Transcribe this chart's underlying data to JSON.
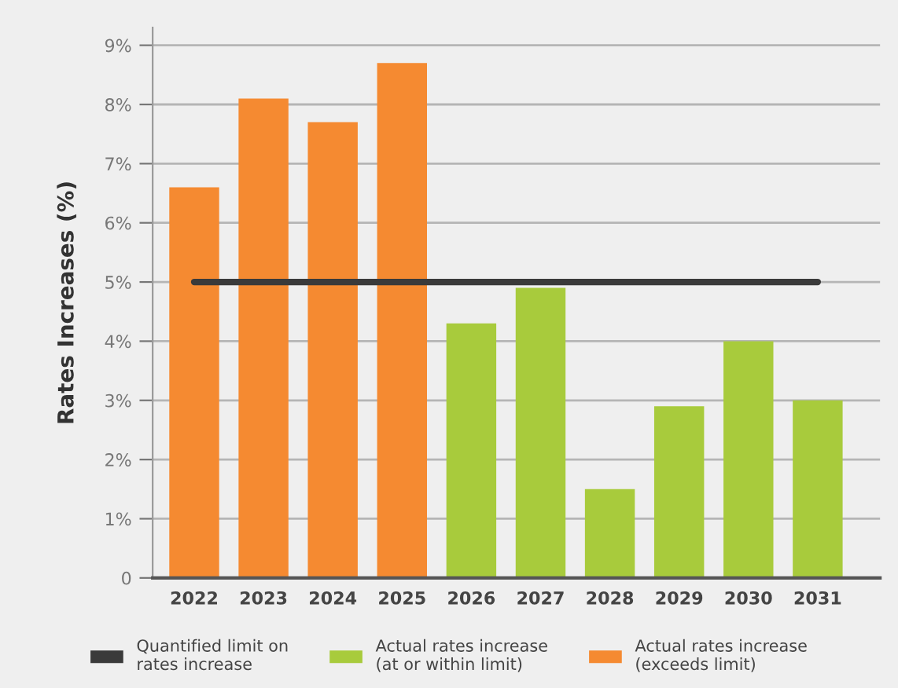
{
  "chart_data": {
    "type": "bar",
    "ylabel": "Rates Increases (%)",
    "categories": [
      "2022",
      "2023",
      "2024",
      "2025",
      "2026",
      "2027",
      "2028",
      "2029",
      "2030",
      "2031"
    ],
    "series": [
      {
        "name": "Quantified limit on rates increase",
        "type": "line",
        "color": "#3a3a3a",
        "values": [
          5,
          5,
          5,
          5,
          5,
          5,
          5,
          5,
          5,
          5
        ]
      },
      {
        "name": "Actual rates increase (at or within limit)",
        "color": "#a8cb3c",
        "values": [
          null,
          null,
          null,
          null,
          4.3,
          4.9,
          1.5,
          2.9,
          4.0,
          3.0
        ]
      },
      {
        "name": "Actual rates increase (exceeds limit)",
        "color": "#f58a31",
        "values": [
          6.6,
          8.1,
          7.7,
          8.7,
          null,
          null,
          null,
          null,
          null,
          null
        ]
      }
    ],
    "ylim": [
      0,
      9.3
    ],
    "yticks": [
      {
        "value": 0,
        "label": "0"
      },
      {
        "value": 1,
        "label": "1%"
      },
      {
        "value": 2,
        "label": "2%"
      },
      {
        "value": 3,
        "label": "3%"
      },
      {
        "value": 4,
        "label": "4%"
      },
      {
        "value": 5,
        "label": "5%"
      },
      {
        "value": 6,
        "label": "6%"
      },
      {
        "value": 7,
        "label": "7%"
      },
      {
        "value": 8,
        "label": "8%"
      },
      {
        "value": 9,
        "label": "9%"
      }
    ],
    "grid": "y",
    "legend": "bottom"
  }
}
